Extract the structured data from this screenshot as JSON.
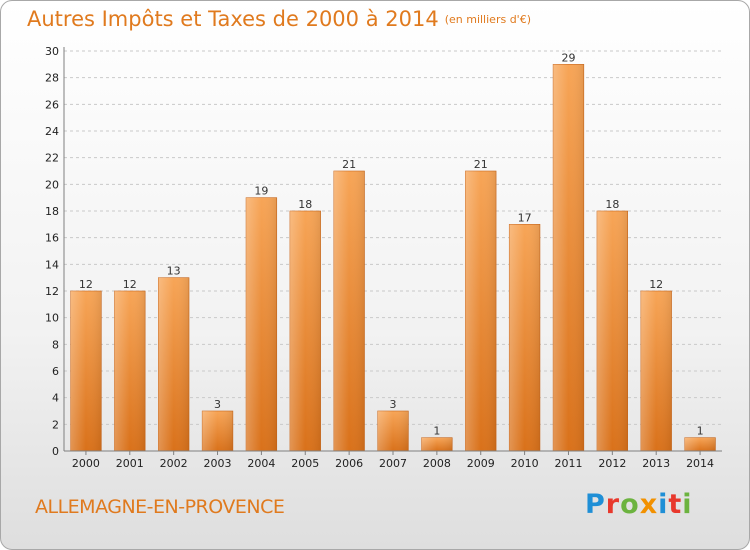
{
  "chart_data": {
    "type": "bar",
    "title": "Autres Impôts et Taxes de 2000 à 2014",
    "subtitle": "(en milliers d'€)",
    "categories": [
      "2000",
      "2001",
      "2002",
      "2003",
      "2004",
      "2005",
      "2006",
      "2007",
      "2008",
      "2009",
      "2010",
      "2011",
      "2012",
      "2013",
      "2014"
    ],
    "values": [
      12,
      12,
      13,
      3,
      19,
      18,
      21,
      3,
      1,
      21,
      17,
      29,
      18,
      12,
      1
    ],
    "yticks": [
      0,
      2,
      4,
      6,
      8,
      10,
      12,
      14,
      16,
      18,
      20,
      22,
      24,
      26,
      28,
      30
    ],
    "ylim": [
      0,
      30
    ],
    "grid": "horizontal dashed",
    "bar_color": "#f0913c"
  },
  "footer": {
    "commune": "ALLEMAGNE-EN-PROVENCE",
    "logo": "Proxiti",
    "logo_colors": [
      "#1f8fd6",
      "#e8382c",
      "#6cb33f",
      "#f29100",
      "#1f8fd6",
      "#e8382c",
      "#6cb33f"
    ]
  }
}
